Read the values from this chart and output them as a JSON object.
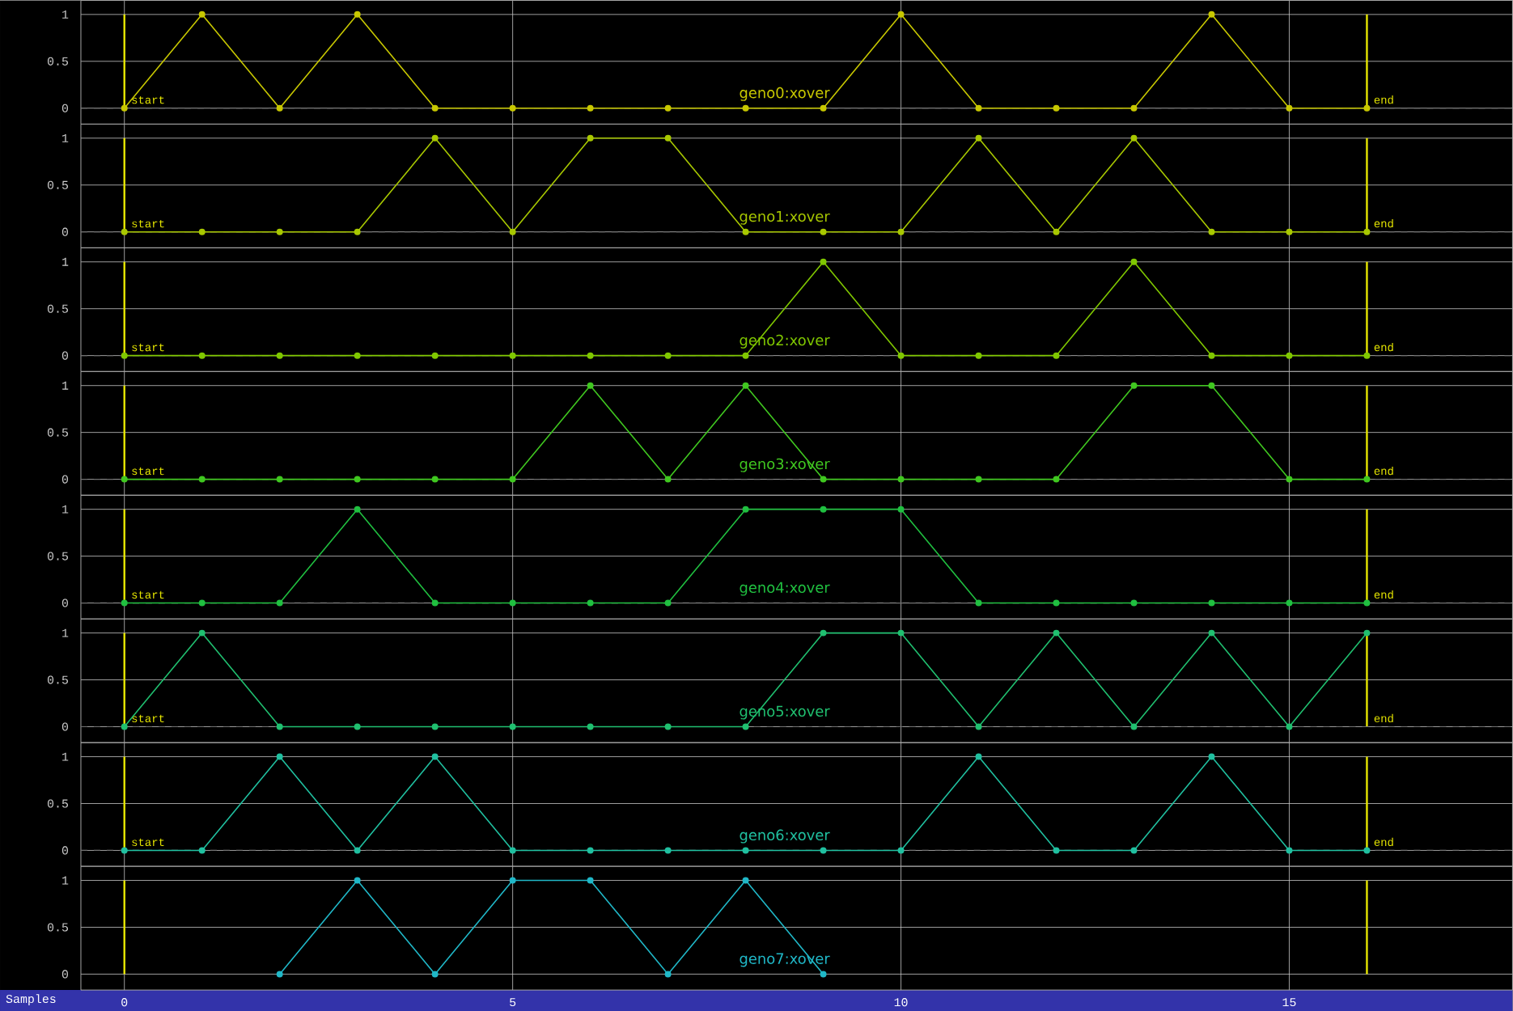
{
  "chart_data": [
    {
      "type": "line",
      "x": [
        0,
        1,
        2,
        3,
        4,
        5,
        6,
        7,
        8,
        9,
        10,
        11,
        12,
        13,
        14,
        15,
        16
      ],
      "xlim": [
        -0.56,
        17.875
      ],
      "ylim": [
        -0.17,
        1.15
      ],
      "xticks": [
        0,
        5,
        10,
        15
      ],
      "yticks": [
        0,
        0.5,
        1
      ],
      "grid": true,
      "marker": "circle",
      "tick_labels": "y",
      "series": [
        {
          "name": "geno0:xover",
          "color": "#c8c800",
          "values": [
            0,
            1,
            0,
            1,
            0,
            0,
            0,
            0,
            0,
            0,
            1,
            0,
            0,
            0,
            1,
            0,
            0
          ]
        }
      ],
      "ref_lines": [
        {
          "axis": "x",
          "value": 0,
          "label": "start",
          "color": "#e8e800"
        },
        {
          "axis": "x",
          "value": 16,
          "label": "end",
          "color": "#e8e800"
        },
        {
          "axis": "y",
          "value": 0,
          "line_style": "dashed",
          "color": "#707070"
        }
      ]
    },
    {
      "type": "line",
      "x": [
        0,
        1,
        2,
        3,
        4,
        5,
        6,
        7,
        8,
        9,
        10,
        11,
        12,
        13,
        14,
        15,
        16
      ],
      "xlim": [
        -0.56,
        17.875
      ],
      "ylim": [
        -0.17,
        1.15
      ],
      "xticks": [
        0,
        5,
        10,
        15
      ],
      "yticks": [
        0,
        0.5,
        1
      ],
      "grid": true,
      "marker": "circle",
      "tick_labels": "y",
      "series": [
        {
          "name": "geno1:xover",
          "color": "#a8c800",
          "values": [
            0,
            0,
            0,
            0,
            1,
            0,
            1,
            1,
            0,
            0,
            0,
            1,
            0,
            1,
            0,
            0,
            0
          ]
        }
      ],
      "ref_lines": [
        {
          "axis": "x",
          "value": 0,
          "label": "start",
          "color": "#e8e800"
        },
        {
          "axis": "x",
          "value": 16,
          "label": "end",
          "color": "#e8e800"
        },
        {
          "axis": "y",
          "value": 0,
          "line_style": "dashed",
          "color": "#707070"
        }
      ]
    },
    {
      "type": "line",
      "x": [
        0,
        1,
        2,
        3,
        4,
        5,
        6,
        7,
        8,
        9,
        10,
        11,
        12,
        13,
        14,
        15,
        16
      ],
      "xlim": [
        -0.56,
        17.875
      ],
      "ylim": [
        -0.17,
        1.15
      ],
      "xticks": [
        0,
        5,
        10,
        15
      ],
      "yticks": [
        0,
        0.5,
        1
      ],
      "grid": true,
      "marker": "circle",
      "tick_labels": "y",
      "series": [
        {
          "name": "geno2:xover",
          "color": "#80c800",
          "values": [
            0,
            0,
            0,
            0,
            0,
            0,
            0,
            0,
            0,
            1,
            0,
            0,
            0,
            1,
            0,
            0,
            0
          ]
        }
      ],
      "ref_lines": [
        {
          "axis": "x",
          "value": 0,
          "label": "start",
          "color": "#e8e800"
        },
        {
          "axis": "x",
          "value": 16,
          "label": "end",
          "color": "#e8e800"
        },
        {
          "axis": "y",
          "value": 0,
          "line_style": "dashed",
          "color": "#707070"
        }
      ]
    },
    {
      "type": "line",
      "x": [
        0,
        1,
        2,
        3,
        4,
        5,
        6,
        7,
        8,
        9,
        10,
        11,
        12,
        13,
        14,
        15,
        16
      ],
      "xlim": [
        -0.56,
        17.875
      ],
      "ylim": [
        -0.17,
        1.15
      ],
      "xticks": [
        0,
        5,
        10,
        15
      ],
      "yticks": [
        0,
        0.5,
        1
      ],
      "grid": true,
      "marker": "circle",
      "tick_labels": "y",
      "series": [
        {
          "name": "geno3:xover",
          "color": "#40c820",
          "values": [
            0,
            0,
            0,
            0,
            0,
            0,
            1,
            0,
            1,
            0,
            0,
            0,
            0,
            1,
            1,
            0,
            0
          ]
        }
      ],
      "ref_lines": [
        {
          "axis": "x",
          "value": 0,
          "label": "start",
          "color": "#e8e800"
        },
        {
          "axis": "x",
          "value": 16,
          "label": "end",
          "color": "#e8e800"
        },
        {
          "axis": "y",
          "value": 0,
          "line_style": "dashed",
          "color": "#707070"
        }
      ]
    },
    {
      "type": "line",
      "x": [
        0,
        1,
        2,
        3,
        4,
        5,
        6,
        7,
        8,
        9,
        10,
        11,
        12,
        13,
        14,
        15,
        16
      ],
      "xlim": [
        -0.56,
        17.875
      ],
      "ylim": [
        -0.17,
        1.15
      ],
      "xticks": [
        0,
        5,
        10,
        15
      ],
      "yticks": [
        0,
        0.5,
        1
      ],
      "grid": true,
      "marker": "circle",
      "tick_labels": "y",
      "series": [
        {
          "name": "geno4:xover",
          "color": "#20c040",
          "values": [
            0,
            0,
            0,
            1,
            0,
            0,
            0,
            0,
            1,
            1,
            1,
            0,
            0,
            0,
            0,
            0,
            0
          ]
        }
      ],
      "ref_lines": [
        {
          "axis": "x",
          "value": 0,
          "label": "start",
          "color": "#e8e800"
        },
        {
          "axis": "x",
          "value": 16,
          "label": "end",
          "color": "#e8e800"
        },
        {
          "axis": "y",
          "value": 0,
          "line_style": "dashed",
          "color": "#707070"
        }
      ]
    },
    {
      "type": "line",
      "x": [
        0,
        1,
        2,
        3,
        4,
        5,
        6,
        7,
        8,
        9,
        10,
        11,
        12,
        13,
        14,
        15,
        16
      ],
      "xlim": [
        -0.56,
        17.875
      ],
      "ylim": [
        -0.17,
        1.15
      ],
      "xticks": [
        0,
        5,
        10,
        15
      ],
      "yticks": [
        0,
        0.5,
        1
      ],
      "grid": true,
      "marker": "circle",
      "tick_labels": "y",
      "series": [
        {
          "name": "geno5:xover",
          "color": "#20c070",
          "values": [
            0,
            1,
            0,
            0,
            0,
            0,
            0,
            0,
            0,
            1,
            1,
            0,
            1,
            0,
            1,
            0,
            1
          ]
        }
      ],
      "ref_lines": [
        {
          "axis": "x",
          "value": 0,
          "label": "start",
          "color": "#e8e800"
        },
        {
          "axis": "x",
          "value": 16,
          "label": "end",
          "color": "#e8e800"
        },
        {
          "axis": "y",
          "value": 0,
          "line_style": "dashed",
          "color": "#707070"
        }
      ]
    },
    {
      "type": "line",
      "x": [
        0,
        1,
        2,
        3,
        4,
        5,
        6,
        7,
        8,
        9,
        10,
        11,
        12,
        13,
        14,
        15,
        16
      ],
      "xlim": [
        -0.56,
        17.875
      ],
      "ylim": [
        -0.17,
        1.15
      ],
      "xticks": [
        0,
        5,
        10,
        15
      ],
      "yticks": [
        0,
        0.5,
        1
      ],
      "grid": true,
      "marker": "circle",
      "tick_labels": "y",
      "series": [
        {
          "name": "geno6:xover",
          "color": "#20c0a0",
          "values": [
            0,
            0,
            1,
            0,
            1,
            0,
            0,
            0,
            0,
            0,
            0,
            1,
            0,
            0,
            1,
            0,
            0
          ]
        }
      ],
      "ref_lines": [
        {
          "axis": "x",
          "value": 0,
          "label": "start",
          "color": "#e8e800"
        },
        {
          "axis": "x",
          "value": 16,
          "label": "end",
          "color": "#e8e800"
        },
        {
          "axis": "y",
          "value": 0,
          "line_style": "dashed",
          "color": "#707070"
        }
      ]
    },
    {
      "type": "line",
      "xlim": [
        -0.56,
        17.875
      ],
      "ylim": [
        -0.17,
        1.15
      ],
      "xticks": [
        0,
        5,
        10,
        15
      ],
      "yticks": [
        0,
        0.5,
        1
      ],
      "grid": true,
      "marker": "circle",
      "xlabel": "Samples",
      "series": [
        {
          "name": "geno7:xover",
          "color": "#20b8c8",
          "x": [
            2,
            3,
            4,
            5,
            6,
            7,
            8,
            9
          ],
          "values": [
            0,
            1,
            0,
            1,
            1,
            0,
            1,
            0
          ]
        }
      ],
      "ref_lines": [
        {
          "axis": "x",
          "value": 0,
          "color": "#e8e800"
        },
        {
          "axis": "x",
          "value": 16,
          "color": "#e8e800"
        }
      ]
    }
  ]
}
